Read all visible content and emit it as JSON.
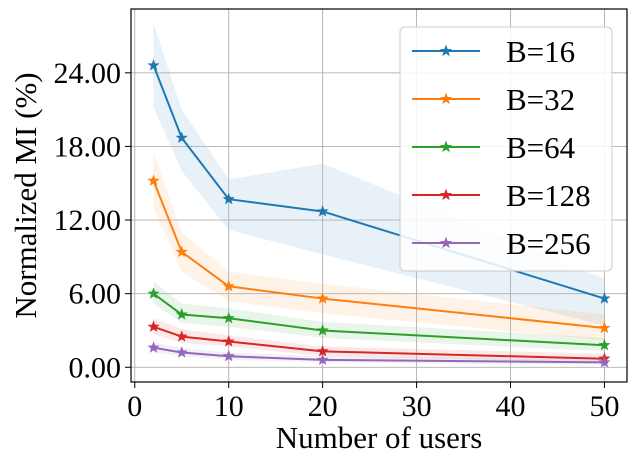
{
  "chart_data": {
    "type": "line",
    "title": "",
    "xlabel": "Number of users",
    "ylabel": "Normalized MI (%)",
    "x": [
      2,
      5,
      10,
      20,
      50
    ],
    "xlim": [
      -0.4,
      52.4
    ],
    "ylim": [
      -1.2,
      29.2
    ],
    "xticks": [
      0,
      10,
      20,
      30,
      40,
      50
    ],
    "xtick_labels": [
      "0",
      "10",
      "20",
      "30",
      "40",
      "50"
    ],
    "yticks": [
      0,
      6,
      12,
      18,
      24
    ],
    "ytick_labels": [
      "0.00",
      "6.00",
      "12.00",
      "18.00",
      "24.00"
    ],
    "grid": true,
    "legend_position": "top-right",
    "series": [
      {
        "name": "B=16",
        "color": "#1f77b4",
        "values": [
          24.6,
          18.7,
          13.7,
          12.7,
          5.6
        ],
        "lower": [
          21.2,
          16.0,
          11.2,
          9.2,
          3.4
        ],
        "upper": [
          28.0,
          21.0,
          15.3,
          16.6,
          7.2
        ]
      },
      {
        "name": "B=32",
        "color": "#ff7f0e",
        "values": [
          15.2,
          9.4,
          6.6,
          5.6,
          3.2
        ],
        "lower": [
          13.0,
          7.8,
          5.4,
          4.4,
          2.2
        ],
        "upper": [
          17.5,
          11.0,
          7.8,
          6.8,
          4.3
        ]
      },
      {
        "name": "B=64",
        "color": "#2ca02c",
        "values": [
          6.0,
          4.3,
          4.0,
          3.0,
          1.8
        ],
        "lower": [
          5.2,
          3.6,
          3.3,
          2.4,
          1.3
        ],
        "upper": [
          7.0,
          5.2,
          4.8,
          3.7,
          2.4
        ]
      },
      {
        "name": "B=128",
        "color": "#d62728",
        "values": [
          3.3,
          2.5,
          2.1,
          1.3,
          0.7
        ],
        "lower": [
          2.7,
          2.0,
          1.7,
          0.9,
          0.4
        ],
        "upper": [
          4.0,
          3.1,
          2.6,
          1.7,
          1.1
        ]
      },
      {
        "name": "B=256",
        "color": "#9467bd",
        "values": [
          1.6,
          1.2,
          0.9,
          0.6,
          0.4
        ],
        "lower": [
          1.2,
          0.9,
          0.6,
          0.4,
          0.2
        ],
        "upper": [
          2.0,
          1.6,
          1.2,
          0.9,
          0.7
        ]
      }
    ]
  }
}
